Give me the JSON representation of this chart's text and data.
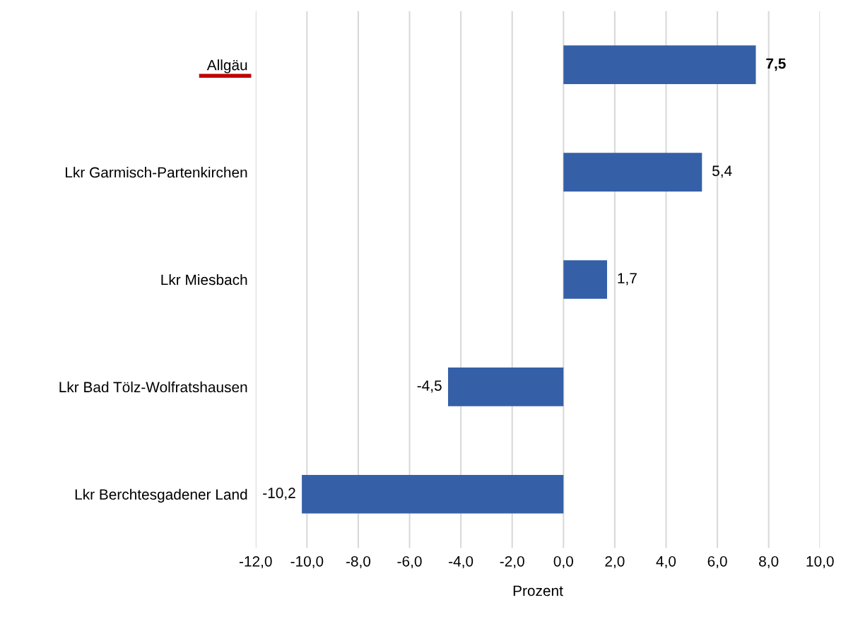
{
  "chart_data": {
    "type": "bar",
    "orientation": "horizontal",
    "categories": [
      "Allgäu",
      "Lkr Garmisch-Partenkirchen",
      "Lkr Miesbach",
      "Lkr Bad Tölz-Wolfratshausen",
      "Lkr Berchtesgadener Land"
    ],
    "values": [
      7.5,
      5.4,
      1.7,
      -4.5,
      -10.2
    ],
    "value_labels": [
      "7,5",
      "5,4",
      "1,7",
      "-4,5",
      "-10,2"
    ],
    "color": "#3560a8",
    "xlabel": "Prozent",
    "xlim": [
      -12,
      10
    ],
    "xticks": [
      {
        "value": -12,
        "label": "-12,0"
      },
      {
        "value": -10,
        "label": "-10,0"
      },
      {
        "value": -8,
        "label": "-8,0"
      },
      {
        "value": -6,
        "label": "-6,0"
      },
      {
        "value": -4,
        "label": "-4,0"
      },
      {
        "value": -2,
        "label": "-2,0"
      },
      {
        "value": 0,
        "label": "0,0"
      },
      {
        "value": 2,
        "label": "2,0"
      },
      {
        "value": 4,
        "label": "4,0"
      },
      {
        "value": 6,
        "label": "6,0"
      },
      {
        "value": 8,
        "label": "8,0"
      },
      {
        "value": 10,
        "label": "10,0"
      }
    ],
    "grid": "x"
  }
}
